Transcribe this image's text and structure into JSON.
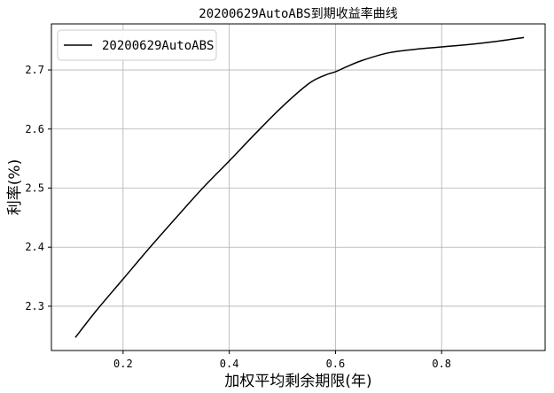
{
  "chart_data": {
    "type": "line",
    "title": "20200629AutoABS到期收益率曲线",
    "xlabel": "加权平均剩余期限(年)",
    "ylabel": "利率(%)",
    "xlim": [
      0.065,
      0.995
    ],
    "ylim": [
      2.225,
      2.778
    ],
    "xticks": [
      0.2,
      0.4,
      0.6,
      0.8
    ],
    "yticks": [
      2.3,
      2.4,
      2.5,
      2.6,
      2.7
    ],
    "xtick_labels": [
      "0.2",
      "0.4",
      "0.6",
      "0.8"
    ],
    "ytick_labels": [
      "2.3",
      "2.4",
      "2.5",
      "2.6",
      "2.7"
    ],
    "grid": true,
    "legend_position": "top-left",
    "series": [
      {
        "name": "20200629AutoABS",
        "color": "#000000",
        "x": [
          0.11,
          0.15,
          0.2,
          0.25,
          0.3,
          0.35,
          0.4,
          0.45,
          0.5,
          0.55,
          0.58,
          0.6,
          0.62,
          0.65,
          0.7,
          0.75,
          0.8,
          0.85,
          0.9,
          0.955
        ],
        "y": [
          2.247,
          2.293,
          2.346,
          2.399,
          2.45,
          2.5,
          2.546,
          2.593,
          2.638,
          2.677,
          2.691,
          2.697,
          2.705,
          2.716,
          2.729,
          2.735,
          2.739,
          2.743,
          2.748,
          2.755
        ]
      }
    ]
  }
}
